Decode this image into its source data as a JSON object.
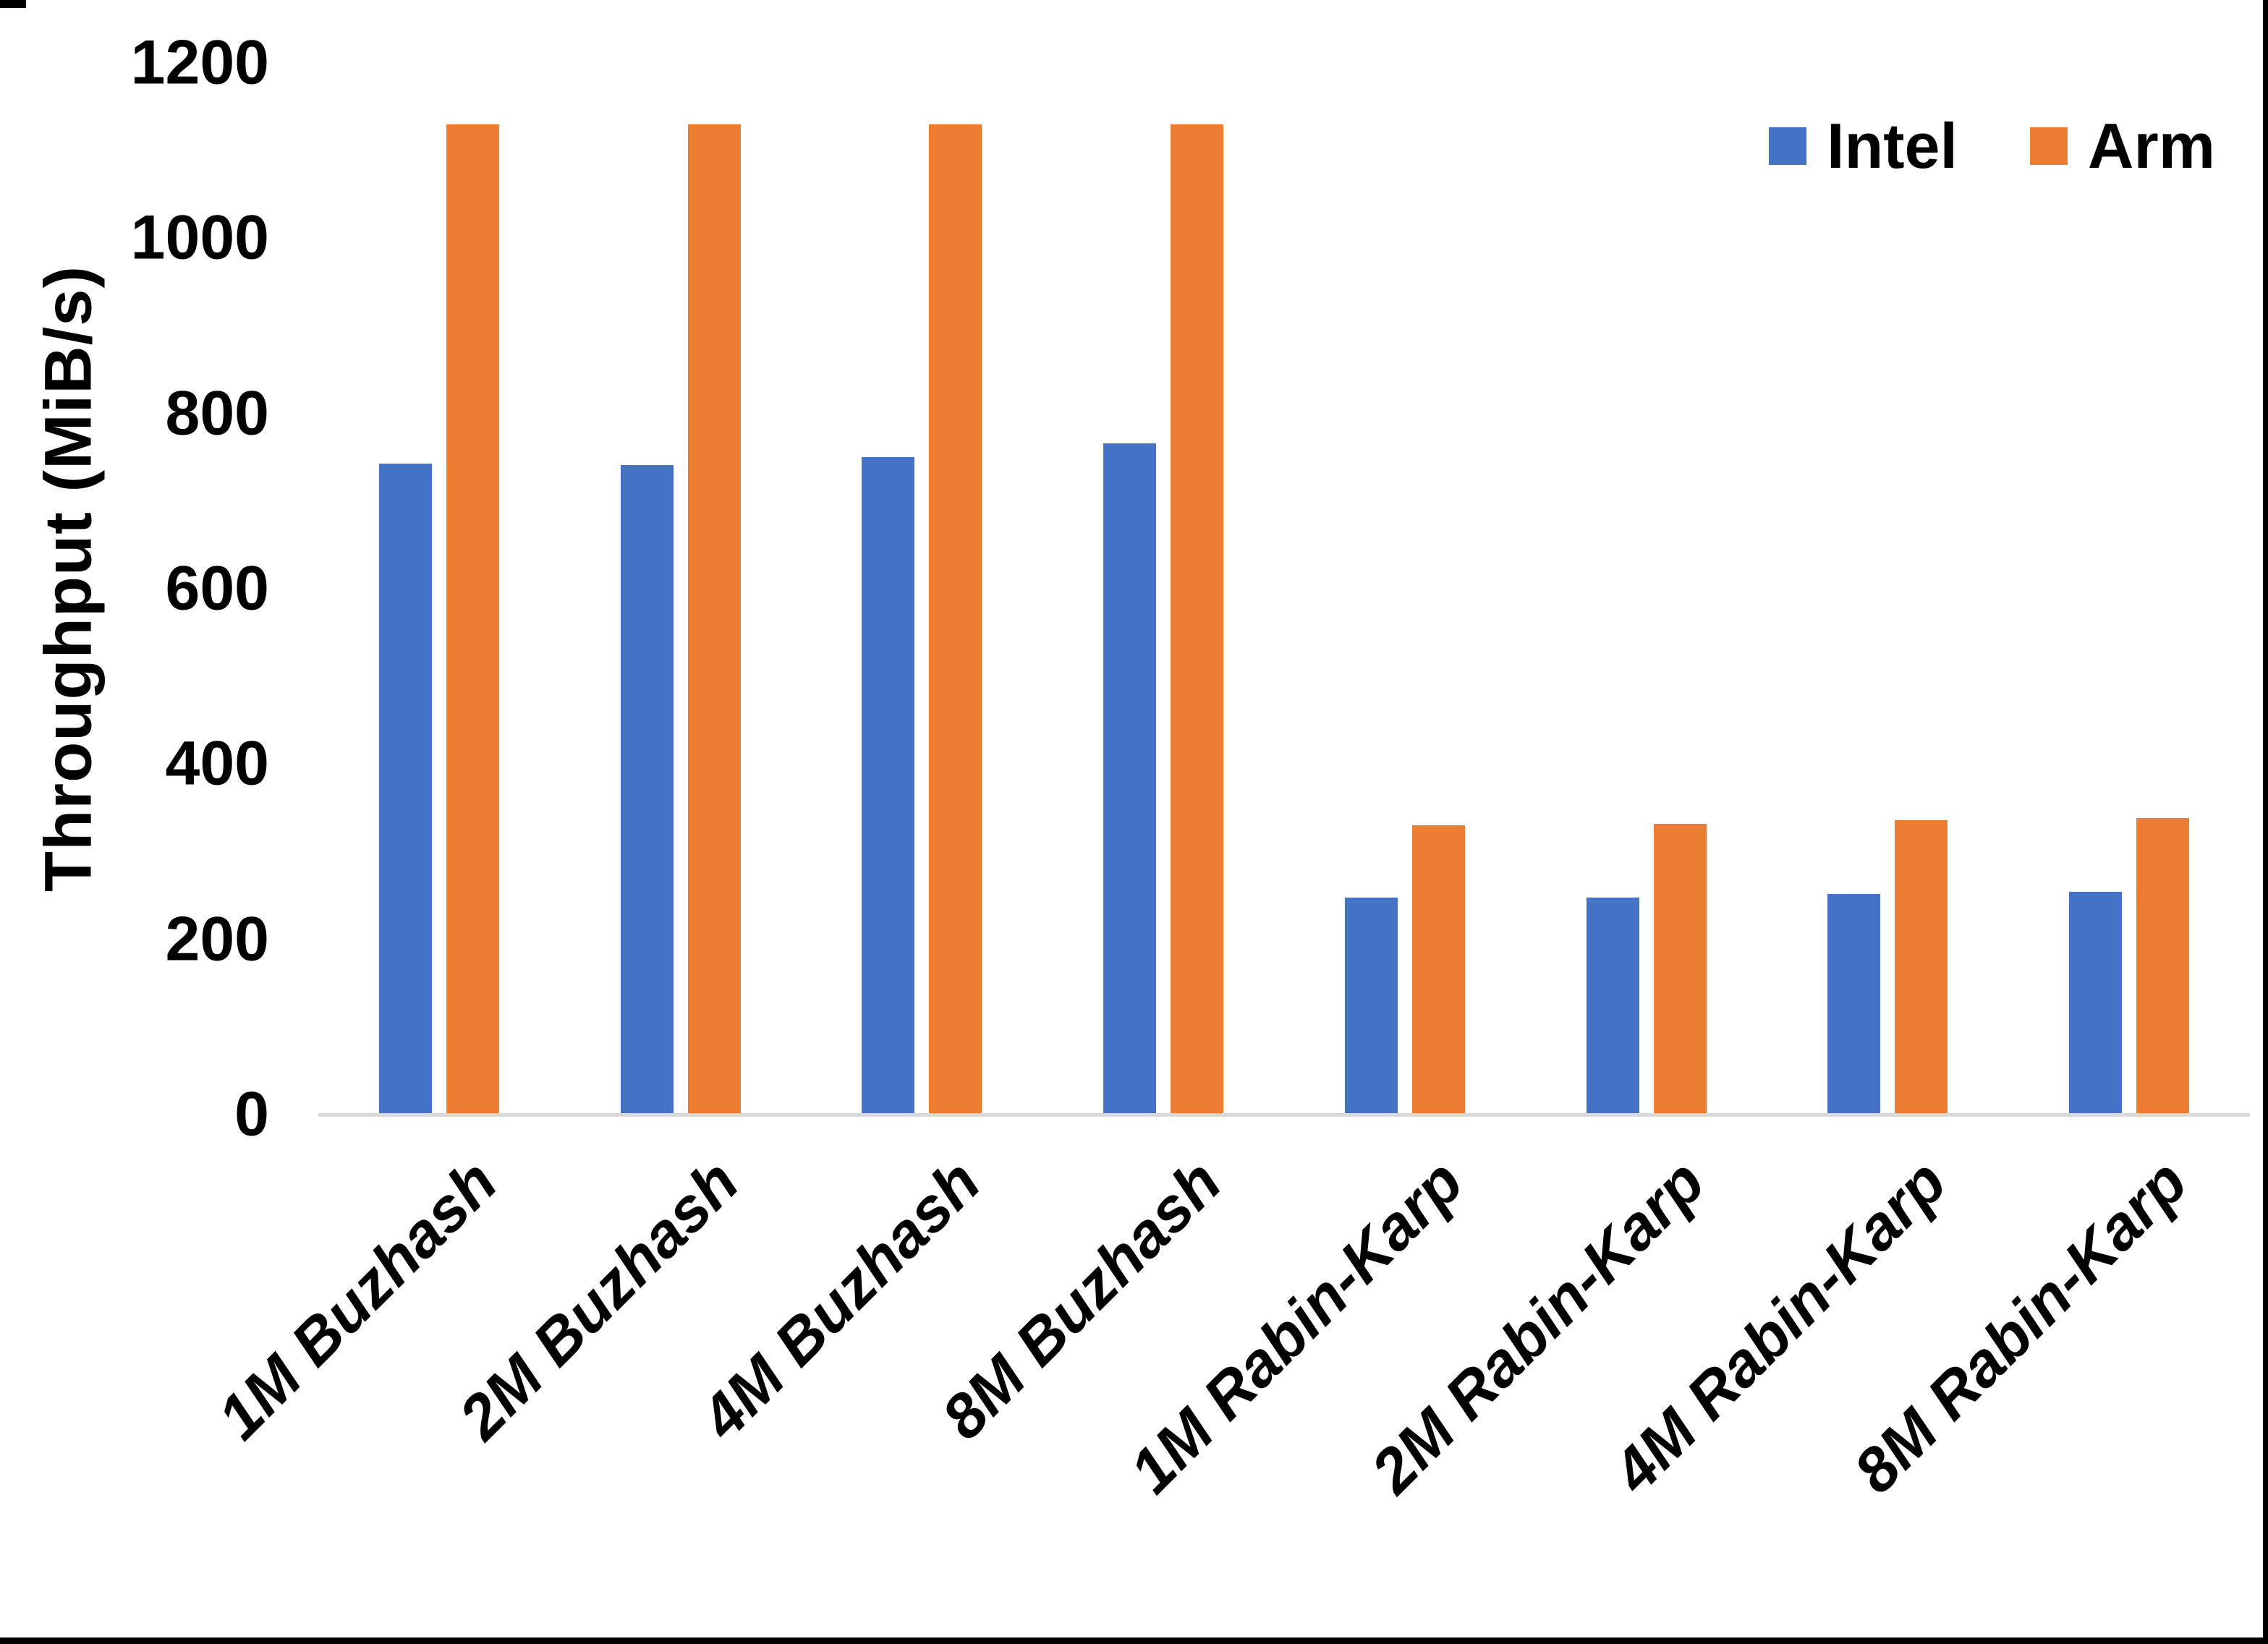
{
  "chart_data": {
    "type": "bar",
    "title": "",
    "categories": [
      "1M Buzhash",
      "2M Buzhash",
      "4M Buzhash",
      "8M Buzhash",
      "1M Rabin-Karp",
      "2M Rabin-Karp",
      "4M Rabin-Karp",
      "8M Rabin-Karp"
    ],
    "series": [
      {
        "name": "Intel",
        "color": "#4472C4",
        "values": [
          743,
          741,
          750,
          766,
          248,
          248,
          252,
          254
        ]
      },
      {
        "name": "Arm",
        "color": "#ED7D31",
        "values": [
          1130,
          1130,
          1130,
          1130,
          330,
          332,
          336,
          338
        ]
      }
    ],
    "xlabel": "",
    "ylabel": "Throughput (MiB/s)",
    "ylim": [
      0,
      1200
    ],
    "yticks": [
      0,
      200,
      400,
      600,
      800,
      1000,
      1200
    ],
    "grid": false,
    "legend_position": "top-right",
    "axis_line_color": "#d9d9d9",
    "text_color": "#000000"
  }
}
